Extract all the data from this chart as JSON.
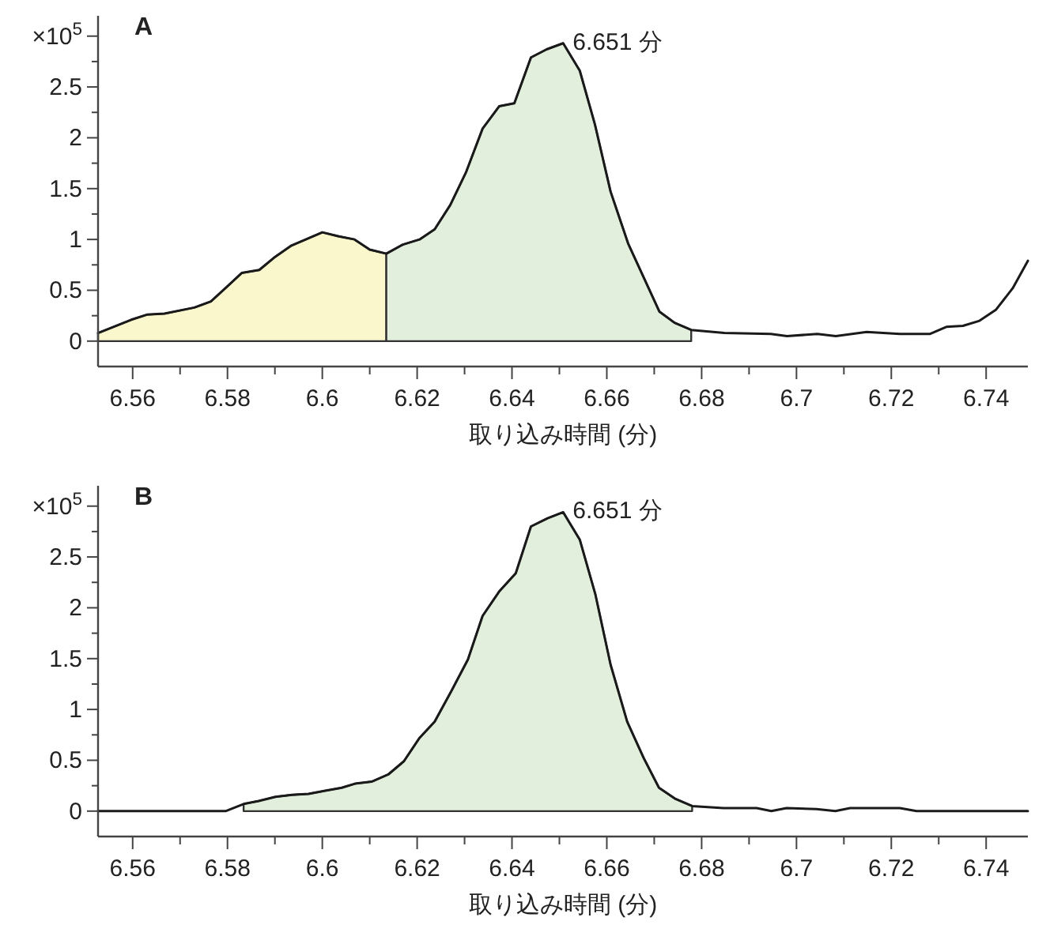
{
  "chart_data": [
    {
      "type": "line",
      "title": "A",
      "xlabel": "取り込み時間 (分)",
      "xlim": [
        6.5527,
        6.7488
      ],
      "ylim": [
        -0.25,
        3.2
      ],
      "xticks": [
        6.56,
        {
          "value": 6.57,
          "label": null
        },
        6.58,
        {
          "value": 6.59,
          "label": null
        },
        6.6,
        {
          "value": 6.61,
          "label": null
        },
        6.62,
        {
          "value": 6.63,
          "label": null
        },
        6.64,
        {
          "value": 6.65,
          "label": null
        },
        6.66,
        {
          "value": 6.67,
          "label": null
        },
        6.68,
        {
          "value": 6.69,
          "label": null
        },
        6.7,
        {
          "value": 6.71,
          "label": null
        },
        6.72,
        {
          "value": 6.73,
          "label": null
        },
        6.74
      ],
      "yticks": [
        0,
        {
          "value": 0.25,
          "label": null
        },
        0.5,
        {
          "value": 0.75,
          "label": null
        },
        1,
        {
          "value": 1.25,
          "label": null
        },
        1.5,
        {
          "value": 1.75,
          "label": null
        },
        2,
        {
          "value": 2.25,
          "label": null
        },
        2.5,
        {
          "value": 2.75,
          "label": null
        },
        {
          "value": 3,
          "label": "×10$^{5}$"
        }
      ],
      "annotations": [
        {
          "text": "6.651 分",
          "x": 6.6508,
          "y": 2.93
        }
      ],
      "series": [
        {
          "type": "area",
          "color": "#faf7cc",
          "x": [
            6.5527,
            6.5597,
            6.563,
            6.5667,
            6.573,
            6.5765,
            6.58,
            6.583,
            6.5867,
            6.5898,
            6.5935,
            6.6,
            6.6035,
            6.6068,
            6.61,
            6.6135
          ],
          "values": [
            0.08,
            0.21,
            0.26,
            0.27,
            0.33,
            0.39,
            0.54,
            0.67,
            0.7,
            0.82,
            0.94,
            1.07,
            1.03,
            1.0,
            0.9,
            0.86
          ]
        },
        {
          "type": "area",
          "color": "#e1efdc",
          "x": [
            6.6135,
            6.617,
            6.6205,
            6.6237,
            6.627,
            6.6303,
            6.6338,
            6.6373,
            6.6405,
            6.644,
            6.6473,
            6.6508,
            6.6543,
            6.6575,
            6.6608,
            6.6645,
            6.6711,
            6.6743,
            6.6778
          ],
          "values": [
            0.86,
            0.95,
            1.0,
            1.1,
            1.34,
            1.66,
            2.09,
            2.31,
            2.34,
            2.79,
            2.87,
            2.93,
            2.66,
            2.13,
            1.47,
            0.96,
            0.29,
            0.18,
            0.11
          ]
        },
        {
          "type": "line",
          "color": "#1a1a1a",
          "x": [
            6.5527,
            6.5597,
            6.563,
            6.5667,
            6.573,
            6.5765,
            6.58,
            6.583,
            6.5867,
            6.5898,
            6.5935,
            6.6,
            6.6035,
            6.6068,
            6.61,
            6.6135,
            6.617,
            6.6205,
            6.6237,
            6.627,
            6.6303,
            6.6338,
            6.6373,
            6.6405,
            6.644,
            6.6473,
            6.6508,
            6.6543,
            6.6575,
            6.6608,
            6.6645,
            6.6711,
            6.6743,
            6.6778,
            6.6848,
            6.6946,
            6.698,
            6.7044,
            6.7083,
            6.7148,
            6.7218,
            6.7281,
            6.7316,
            6.7351,
            6.7386,
            6.7421,
            6.7456,
            6.7488
          ],
          "values": [
            0.08,
            0.21,
            0.26,
            0.27,
            0.33,
            0.39,
            0.54,
            0.67,
            0.7,
            0.82,
            0.94,
            1.07,
            1.03,
            1.0,
            0.9,
            0.86,
            0.95,
            1.0,
            1.1,
            1.34,
            1.66,
            2.09,
            2.31,
            2.34,
            2.79,
            2.87,
            2.93,
            2.66,
            2.13,
            1.47,
            0.96,
            0.29,
            0.18,
            0.11,
            0.08,
            0.07,
            0.05,
            0.07,
            0.05,
            0.09,
            0.07,
            0.07,
            0.14,
            0.15,
            0.2,
            0.31,
            0.52,
            0.79
          ]
        }
      ]
    },
    {
      "type": "line",
      "title": "B",
      "xlabel": "取り込み時間 (分)",
      "xlim": [
        6.5527,
        6.7488
      ],
      "ylim": [
        -0.25,
        3.2
      ],
      "xticks": [
        6.56,
        {
          "value": 6.57,
          "label": null
        },
        6.58,
        {
          "value": 6.59,
          "label": null
        },
        6.6,
        {
          "value": 6.61,
          "label": null
        },
        6.62,
        {
          "value": 6.63,
          "label": null
        },
        6.64,
        {
          "value": 6.65,
          "label": null
        },
        6.66,
        {
          "value": 6.67,
          "label": null
        },
        6.68,
        {
          "value": 6.69,
          "label": null
        },
        6.7,
        {
          "value": 6.71,
          "label": null
        },
        6.72,
        {
          "value": 6.73,
          "label": null
        },
        6.74
      ],
      "yticks": [
        0,
        {
          "value": 0.25,
          "label": null
        },
        0.5,
        {
          "value": 0.75,
          "label": null
        },
        1,
        {
          "value": 1.25,
          "label": null
        },
        1.5,
        {
          "value": 1.75,
          "label": null
        },
        2,
        {
          "value": 2.25,
          "label": null
        },
        2.5,
        {
          "value": 2.75,
          "label": null
        },
        {
          "value": 3,
          "label": "×10$^{5}$"
        }
      ],
      "annotations": [
        {
          "text": "6.651 分",
          "x": 6.6508,
          "y": 2.94
        }
      ],
      "series": [
        {
          "type": "area",
          "color": "#e1efdc",
          "x": [
            6.5834,
            6.5866,
            6.5901,
            6.5936,
            6.5971,
            6.6006,
            6.6041,
            6.6069,
            6.6104,
            6.6139,
            6.6172,
            6.6205,
            6.6237,
            6.6272,
            6.6307,
            6.6338,
            6.6373,
            6.6408,
            6.644,
            6.6475,
            6.6508,
            6.6543,
            6.6576,
            6.6608,
            6.6643,
            6.6678,
            6.671,
            6.6745,
            6.678
          ],
          "values": [
            0.07,
            0.1,
            0.14,
            0.16,
            0.17,
            0.2,
            0.23,
            0.27,
            0.29,
            0.36,
            0.49,
            0.72,
            0.88,
            1.18,
            1.49,
            1.92,
            2.16,
            2.34,
            2.8,
            2.88,
            2.94,
            2.67,
            2.13,
            1.44,
            0.88,
            0.52,
            0.23,
            0.12,
            0.05
          ]
        },
        {
          "type": "line",
          "color": "#1a1a1a",
          "x": [
            6.5527,
            6.5796,
            6.5834,
            6.5866,
            6.5901,
            6.5936,
            6.5971,
            6.6006,
            6.6041,
            6.6069,
            6.6104,
            6.6139,
            6.6172,
            6.6205,
            6.6237,
            6.6272,
            6.6307,
            6.6338,
            6.6373,
            6.6408,
            6.644,
            6.6475,
            6.6508,
            6.6543,
            6.6576,
            6.6608,
            6.6643,
            6.6678,
            6.671,
            6.6745,
            6.678,
            6.6846,
            6.6916,
            6.6947,
            6.6979,
            6.7042,
            6.7082,
            6.7113,
            6.7183,
            6.7218,
            6.7253,
            6.7488
          ],
          "values": [
            0,
            0,
            0.07,
            0.1,
            0.14,
            0.16,
            0.17,
            0.2,
            0.23,
            0.27,
            0.29,
            0.36,
            0.49,
            0.72,
            0.88,
            1.18,
            1.49,
            1.92,
            2.16,
            2.34,
            2.8,
            2.88,
            2.94,
            2.67,
            2.13,
            1.44,
            0.88,
            0.52,
            0.23,
            0.12,
            0.05,
            0.03,
            0.03,
            0,
            0.03,
            0.02,
            0,
            0.03,
            0.03,
            0.03,
            0,
            0
          ]
        }
      ]
    }
  ]
}
